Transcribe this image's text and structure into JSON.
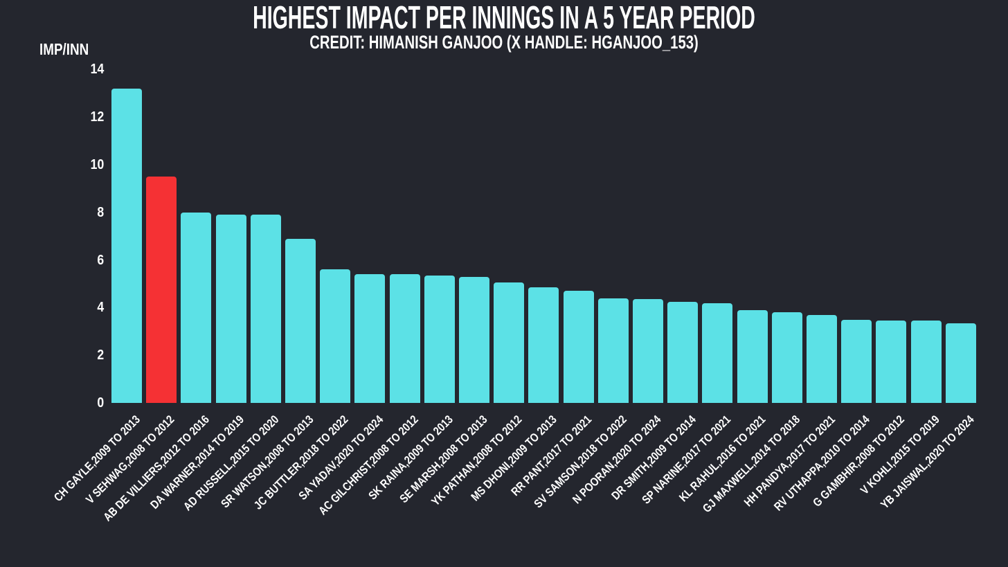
{
  "page": {
    "background_color": "#24262E",
    "text_color": "#FFFFFF"
  },
  "chart_data": {
    "type": "bar",
    "title": "HIGHEST IMPACT PER INNINGS IN A 5 YEAR PERIOD",
    "subtitle": "CREDIT: HIMANISH GANJOO (X HANDLE: HGANJOO_153)",
    "ylabel": "IMP/INN",
    "xlabel": "",
    "ylim": [
      0,
      14
    ],
    "yticks": [
      0,
      2,
      4,
      6,
      8,
      10,
      12,
      14
    ],
    "grid": false,
    "legend": false,
    "bar_color": "#5CE1E6",
    "highlight_color": "#F53134",
    "highlight_index": 1,
    "highlighted_category": "V SEHWAG,2008 TO 2012",
    "categories": [
      "CH GAYLE,2009 TO 2013",
      "V SEHWAG,2008 TO 2012",
      "AB DE VILLIERS,2012 TO 2016",
      "DA WARNER,2014 TO 2019",
      "AD RUSSELL,2015 TO 2020",
      "SR WATSON,2008 TO 2013",
      "JC BUTTLER,2018 TO 2022",
      "SA YADAV,2020 TO 2024",
      "AC GILCHRIST,2008 TO 2012",
      "SK RAINA,2009 TO 2013",
      "SE MARSH,2008 TO 2013",
      "YK PATHAN,2008 TO 2012",
      "MS DHONI,2009 TO 2013",
      "RR PANT,2017 TO 2021",
      "SV SAMSON,2018 TO 2022",
      "N POORAN,2020 TO 2024",
      "DR SMITH,2009 TO 2014",
      "SP NARINE,2017 TO 2021",
      "KL RAHUL,2016 TO 2021",
      "GJ MAXWELL,2014 TO 2018",
      "HH PANDYA,2017 TO 2021",
      "RV UTHAPPA,2010 TO 2014",
      "G GAMBHIR,2008 TO 2012",
      "V KOHLI,2015 TO 2019",
      "YB JAISWAL,2020 TO 2024"
    ],
    "values": [
      13.2,
      9.5,
      8.0,
      7.9,
      7.9,
      6.9,
      5.6,
      5.4,
      5.4,
      5.35,
      5.3,
      5.05,
      4.85,
      4.7,
      4.4,
      4.35,
      4.25,
      4.2,
      3.9,
      3.8,
      3.7,
      3.5,
      3.45,
      3.45,
      3.35
    ]
  }
}
